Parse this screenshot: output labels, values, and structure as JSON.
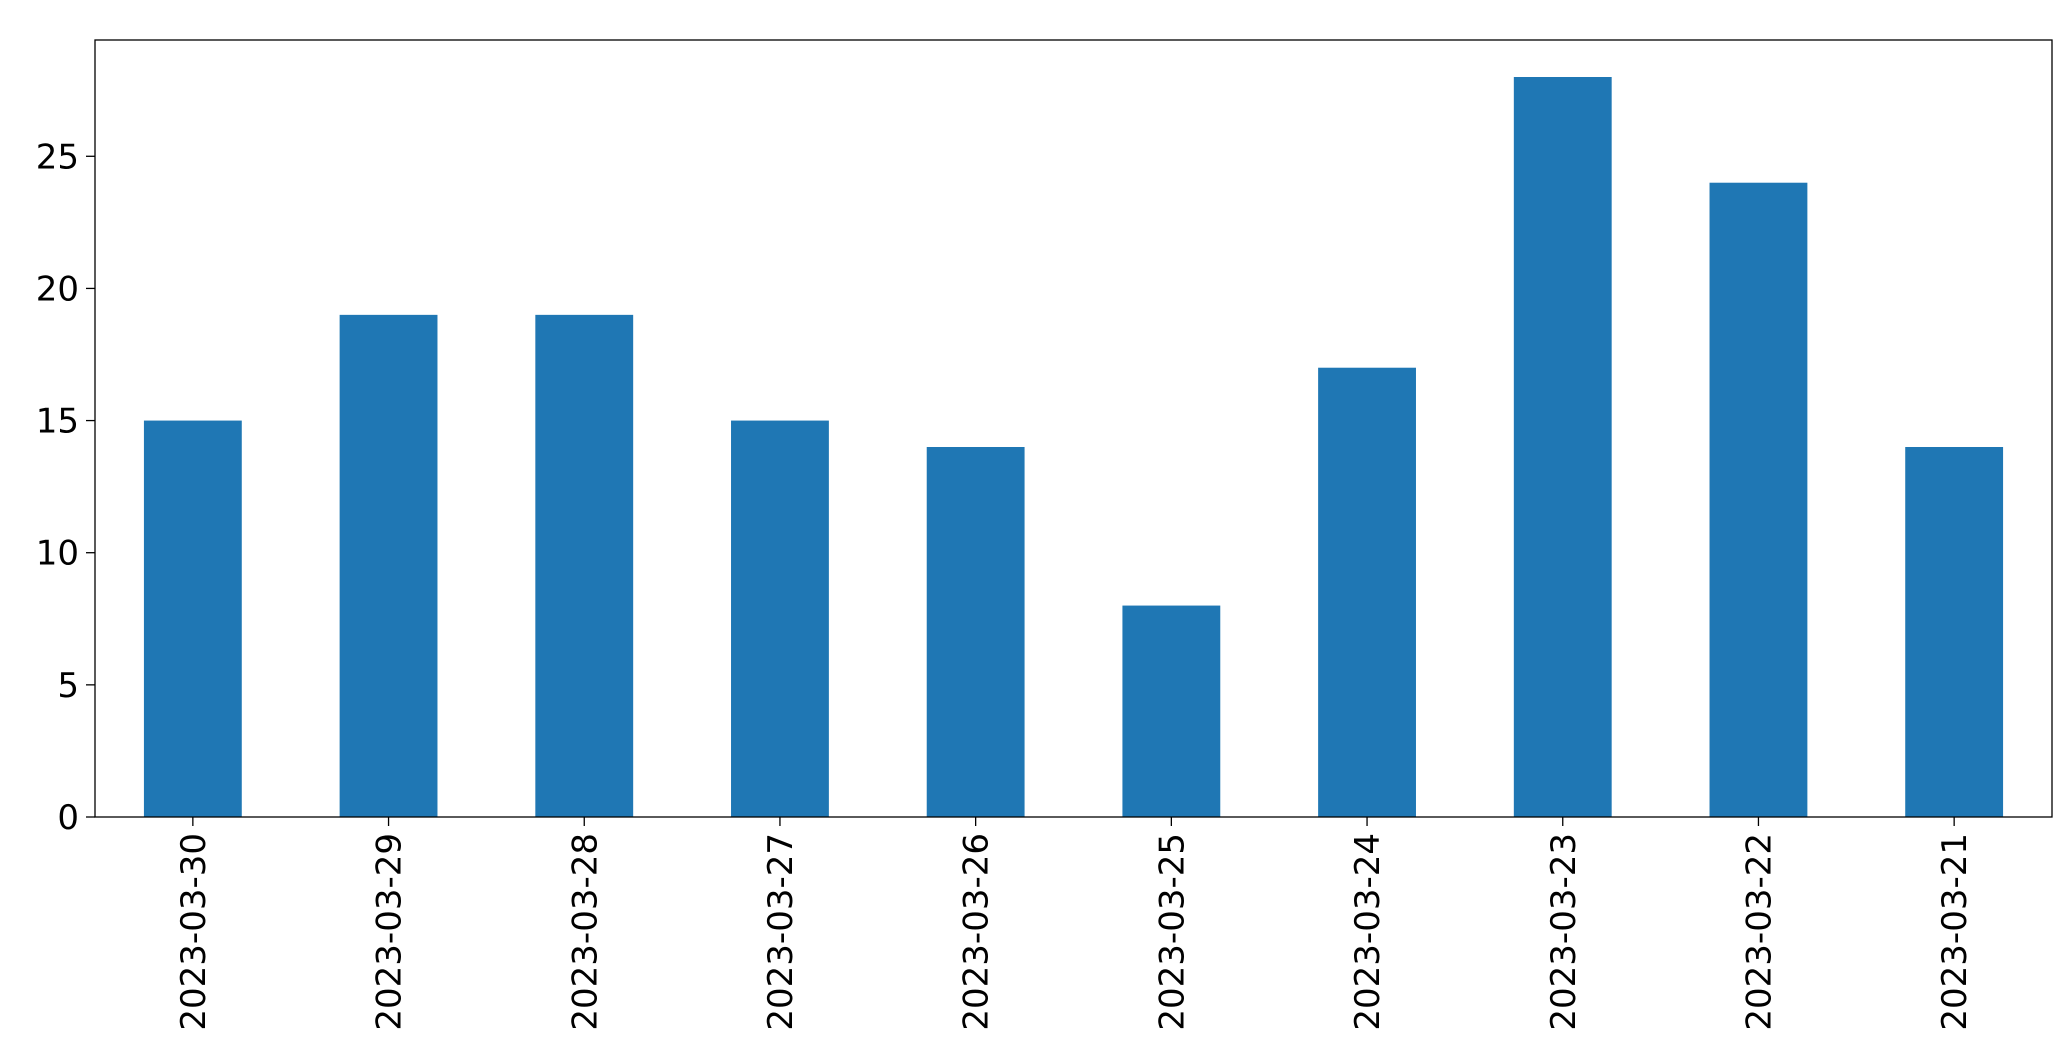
{
  "chart_data": {
    "type": "bar",
    "categories": [
      "2023-03-30",
      "2023-03-29",
      "2023-03-28",
      "2023-03-27",
      "2023-03-26",
      "2023-03-25",
      "2023-03-24",
      "2023-03-23",
      "2023-03-22",
      "2023-03-21"
    ],
    "values": [
      15,
      19,
      19,
      15,
      14,
      8,
      17,
      28,
      24,
      14
    ],
    "color": "#1f77b4",
    "ylim": [
      0,
      29.4
    ],
    "yticks": [
      0,
      5,
      10,
      15,
      20,
      25
    ],
    "grid": false
  }
}
